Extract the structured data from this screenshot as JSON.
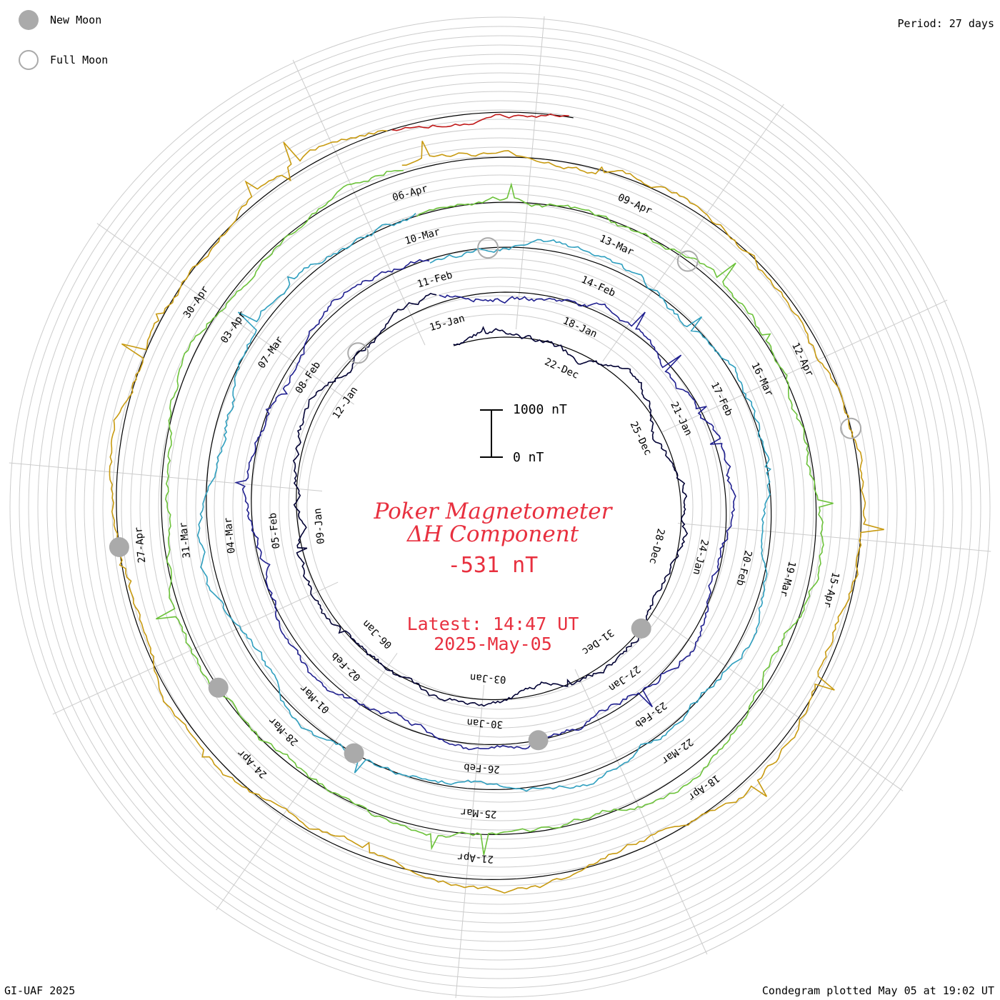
{
  "header": {
    "period_label": "Period: 27 days"
  },
  "legend": {
    "new_moon_label": "New Moon",
    "full_moon_label": "Full Moon",
    "new_moon_color": "#aaaaaa",
    "full_moon_color": "#aaaaaa"
  },
  "footer": {
    "credit": "GI-UAF 2025",
    "plotted": "Condegram plotted May 05 at 19:02 UT"
  },
  "center": {
    "title_line1": "Poker Magnetometer",
    "title_line2": "ΔH Component",
    "current_value": "-531 nT",
    "latest_line1": "Latest: 14:47 UT",
    "latest_line2": "2025-May-05",
    "text_color": "#e8303f"
  },
  "scale_bar": {
    "top_label": "1000 nT",
    "bottom_label": "0 nT"
  },
  "chart_data": {
    "type": "line",
    "subtype": "condegram-spiral",
    "period_days": 27,
    "start_date": "2024-12-19",
    "end_date": "2025-05-05",
    "grid": true,
    "units": "nT",
    "series": [
      {
        "color": "#000033",
        "start": "2024-12-19",
        "end": "2025-01-15"
      },
      {
        "color": "#1f1f8f",
        "start": "2025-01-15",
        "end": "2025-02-11"
      },
      {
        "color": "#2f9fbf",
        "start": "2025-02-11",
        "end": "2025-03-10"
      },
      {
        "color": "#6cc23a",
        "start": "2025-03-10",
        "end": "2025-04-06"
      },
      {
        "color": "#c89a10",
        "start": "2025-04-06",
        "end": "2025-05-03"
      },
      {
        "color": "#c01818",
        "start": "2025-05-03",
        "end": "2025-05-05"
      }
    ],
    "date_labels": [
      "22-Dec",
      "25-Dec",
      "28-Dec",
      "31-Dec",
      "03-Jan",
      "06-Jan",
      "09-Jan",
      "12-Jan",
      "15-Jan",
      "18-Jan",
      "21-Jan",
      "24-Jan",
      "27-Jan",
      "30-Jan",
      "02-Feb",
      "05-Feb",
      "08-Feb",
      "11-Feb",
      "14-Feb",
      "17-Feb",
      "20-Feb",
      "23-Feb",
      "26-Feb",
      "01-Mar",
      "04-Mar",
      "07-Mar",
      "10-Mar",
      "13-Mar",
      "16-Mar",
      "19-Mar",
      "22-Mar",
      "25-Mar",
      "28-Mar",
      "31-Mar",
      "03-Apr",
      "06-Apr",
      "09-Apr",
      "12-Apr",
      "15-Apr",
      "18-Apr",
      "21-Apr",
      "24-Apr",
      "27-Apr",
      "30-Apr"
    ],
    "new_moons": [
      "2024-12-30",
      "2025-01-29",
      "2025-02-28",
      "2025-03-29",
      "2025-04-27"
    ],
    "full_moons": [
      "2025-01-13",
      "2025-02-12",
      "2025-03-14",
      "2025-04-13"
    ]
  }
}
